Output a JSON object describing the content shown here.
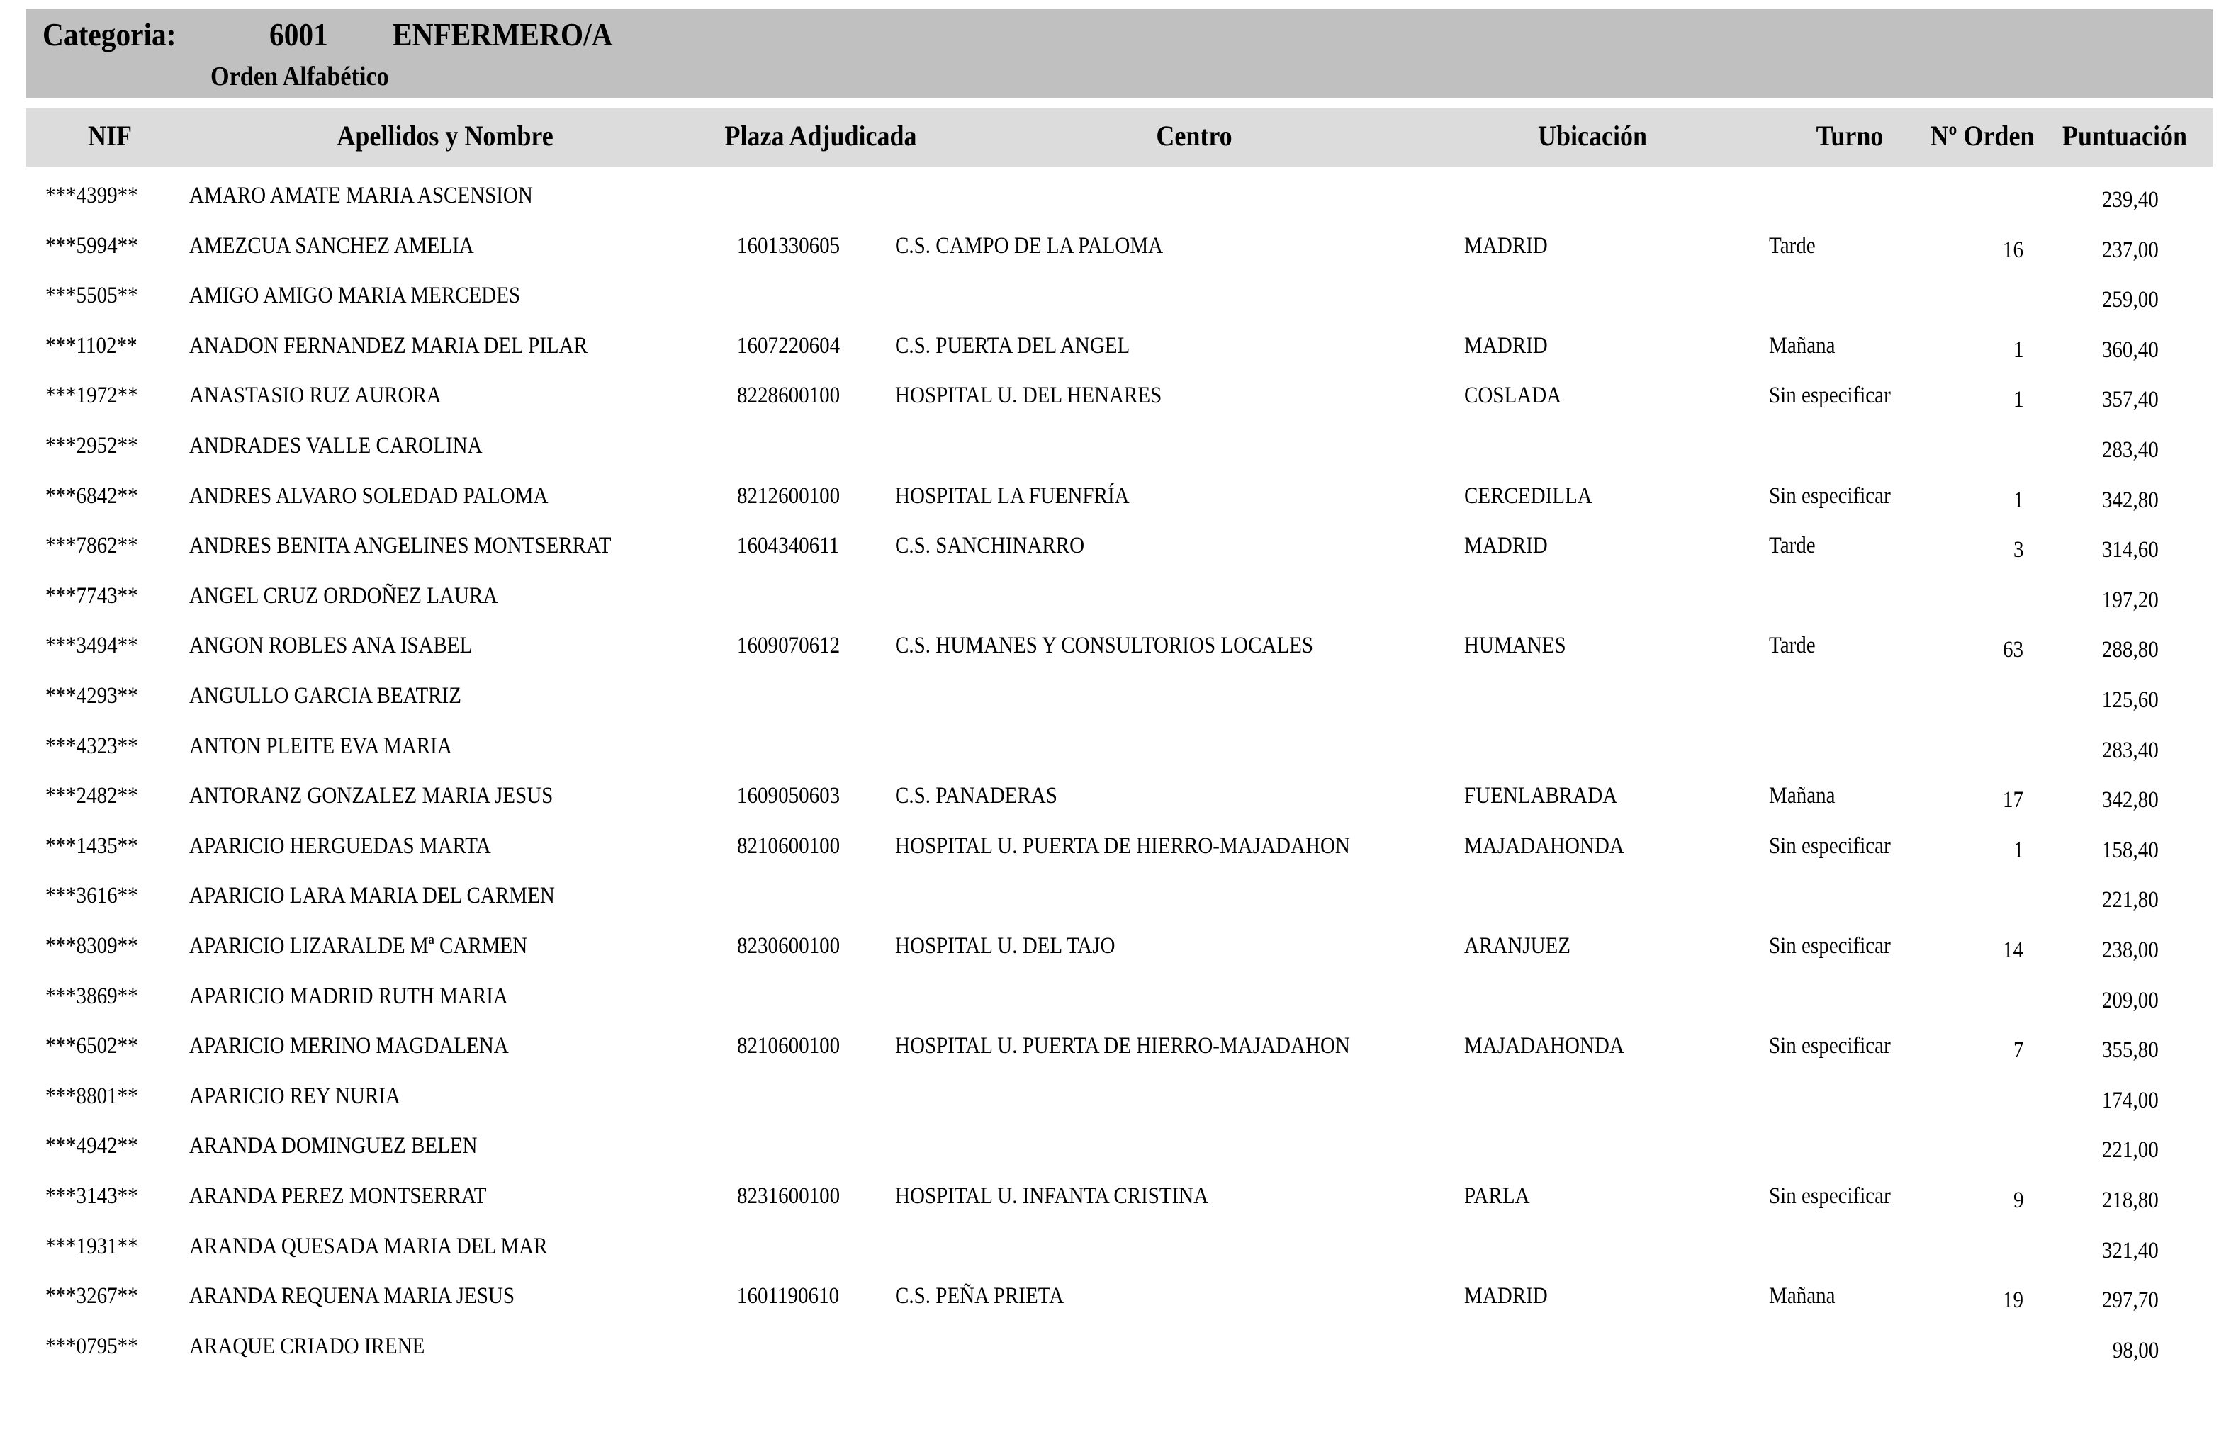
{
  "header": {
    "category_label": "Categoria:",
    "category_code": "6001",
    "category_name": "ENFERMERO/A",
    "order": "Orden Alfabético"
  },
  "columns": [
    "NIF",
    "Apellidos y Nombre",
    "Plaza Adjudicada",
    "Centro",
    "Ubicación",
    "Turno",
    "Nº Orden",
    "Puntuación"
  ],
  "rows": [
    {
      "nif": "***4399**",
      "nombre": "AMARO AMATE MARIA ASCENSION",
      "plaza": "",
      "centro": "",
      "ubicacion": "",
      "turno": "",
      "orden": "",
      "puntuacion": "239,40"
    },
    {
      "nif": "***5994**",
      "nombre": "AMEZCUA SANCHEZ AMELIA",
      "plaza": "1601330605",
      "centro": "C.S. CAMPO DE LA PALOMA",
      "ubicacion": "MADRID",
      "turno": "Tarde",
      "orden": "16",
      "puntuacion": "237,00"
    },
    {
      "nif": "***5505**",
      "nombre": "AMIGO AMIGO MARIA MERCEDES",
      "plaza": "",
      "centro": "",
      "ubicacion": "",
      "turno": "",
      "orden": "",
      "puntuacion": "259,00"
    },
    {
      "nif": "***1102**",
      "nombre": "ANADON FERNANDEZ MARIA DEL PILAR",
      "plaza": "1607220604",
      "centro": "C.S. PUERTA DEL ANGEL",
      "ubicacion": "MADRID",
      "turno": "Mañana",
      "orden": "1",
      "puntuacion": "360,40"
    },
    {
      "nif": "***1972**",
      "nombre": "ANASTASIO RUZ AURORA",
      "plaza": "8228600100",
      "centro": "HOSPITAL U. DEL HENARES",
      "ubicacion": "COSLADA",
      "turno": "Sin especificar",
      "orden": "1",
      "puntuacion": "357,40"
    },
    {
      "nif": "***2952**",
      "nombre": "ANDRADES VALLE CAROLINA",
      "plaza": "",
      "centro": "",
      "ubicacion": "",
      "turno": "",
      "orden": "",
      "puntuacion": "283,40"
    },
    {
      "nif": "***6842**",
      "nombre": "ANDRES ALVARO SOLEDAD PALOMA",
      "plaza": "8212600100",
      "centro": "HOSPITAL LA FUENFRÍA",
      "ubicacion": "CERCEDILLA",
      "turno": "Sin especificar",
      "orden": "1",
      "puntuacion": "342,80"
    },
    {
      "nif": "***7862**",
      "nombre": "ANDRES BENITA ANGELINES MONTSERRAT",
      "plaza": "1604340611",
      "centro": "C.S. SANCHINARRO",
      "ubicacion": "MADRID",
      "turno": "Tarde",
      "orden": "3",
      "puntuacion": "314,60"
    },
    {
      "nif": "***7743**",
      "nombre": "ANGEL CRUZ ORDOÑEZ LAURA",
      "plaza": "",
      "centro": "",
      "ubicacion": "",
      "turno": "",
      "orden": "",
      "puntuacion": "197,20"
    },
    {
      "nif": "***3494**",
      "nombre": "ANGON ROBLES ANA ISABEL",
      "plaza": "1609070612",
      "centro": "C.S. HUMANES Y CONSULTORIOS LOCALES",
      "ubicacion": "HUMANES",
      "turno": "Tarde",
      "orden": "63",
      "puntuacion": "288,80"
    },
    {
      "nif": "***4293**",
      "nombre": "ANGULLO GARCIA BEATRIZ",
      "plaza": "",
      "centro": "",
      "ubicacion": "",
      "turno": "",
      "orden": "",
      "puntuacion": "125,60"
    },
    {
      "nif": "***4323**",
      "nombre": "ANTON PLEITE EVA MARIA",
      "plaza": "",
      "centro": "",
      "ubicacion": "",
      "turno": "",
      "orden": "",
      "puntuacion": "283,40"
    },
    {
      "nif": "***2482**",
      "nombre": "ANTORANZ GONZALEZ MARIA JESUS",
      "plaza": "1609050603",
      "centro": "C.S. PANADERAS",
      "ubicacion": "FUENLABRADA",
      "turno": "Mañana",
      "orden": "17",
      "puntuacion": "342,80"
    },
    {
      "nif": "***1435**",
      "nombre": "APARICIO HERGUEDAS MARTA",
      "plaza": "8210600100",
      "centro": "HOSPITAL U. PUERTA DE HIERRO-MAJADAHON",
      "ubicacion": "MAJADAHONDA",
      "turno": "Sin especificar",
      "orden": "1",
      "puntuacion": "158,40"
    },
    {
      "nif": "***3616**",
      "nombre": "APARICIO LARA MARIA DEL CARMEN",
      "plaza": "",
      "centro": "",
      "ubicacion": "",
      "turno": "",
      "orden": "",
      "puntuacion": "221,80"
    },
    {
      "nif": "***8309**",
      "nombre": "APARICIO LIZARALDE Mª CARMEN",
      "plaza": "8230600100",
      "centro": "HOSPITAL U.  DEL TAJO",
      "ubicacion": "ARANJUEZ",
      "turno": "Sin especificar",
      "orden": "14",
      "puntuacion": "238,00"
    },
    {
      "nif": "***3869**",
      "nombre": "APARICIO MADRID RUTH MARIA",
      "plaza": "",
      "centro": "",
      "ubicacion": "",
      "turno": "",
      "orden": "",
      "puntuacion": "209,00"
    },
    {
      "nif": "***6502**",
      "nombre": "APARICIO MERINO MAGDALENA",
      "plaza": "8210600100",
      "centro": "HOSPITAL U. PUERTA DE HIERRO-MAJADAHON",
      "ubicacion": "MAJADAHONDA",
      "turno": "Sin especificar",
      "orden": "7",
      "puntuacion": "355,80"
    },
    {
      "nif": "***8801**",
      "nombre": "APARICIO REY NURIA",
      "plaza": "",
      "centro": "",
      "ubicacion": "",
      "turno": "",
      "orden": "",
      "puntuacion": "174,00"
    },
    {
      "nif": "***4942**",
      "nombre": "ARANDA DOMINGUEZ BELEN",
      "plaza": "",
      "centro": "",
      "ubicacion": "",
      "turno": "",
      "orden": "",
      "puntuacion": "221,00"
    },
    {
      "nif": "***3143**",
      "nombre": "ARANDA PEREZ MONTSERRAT",
      "plaza": "8231600100",
      "centro": "HOSPITAL U. INFANTA CRISTINA",
      "ubicacion": "PARLA",
      "turno": "Sin especificar",
      "orden": "9",
      "puntuacion": "218,80"
    },
    {
      "nif": "***1931**",
      "nombre": "ARANDA QUESADA MARIA DEL MAR",
      "plaza": "",
      "centro": "",
      "ubicacion": "",
      "turno": "",
      "orden": "",
      "puntuacion": "321,40"
    },
    {
      "nif": "***3267**",
      "nombre": "ARANDA REQUENA MARIA JESUS",
      "plaza": "1601190610",
      "centro": "C.S. PEÑA PRIETA",
      "ubicacion": "MADRID",
      "turno": "Mañana",
      "orden": "19",
      "puntuacion": "297,70"
    },
    {
      "nif": "***0795**",
      "nombre": "ARAQUE CRIADO IRENE",
      "plaza": "",
      "centro": "",
      "ubicacion": "",
      "turno": "",
      "orden": "",
      "puntuacion": "98,00"
    }
  ]
}
